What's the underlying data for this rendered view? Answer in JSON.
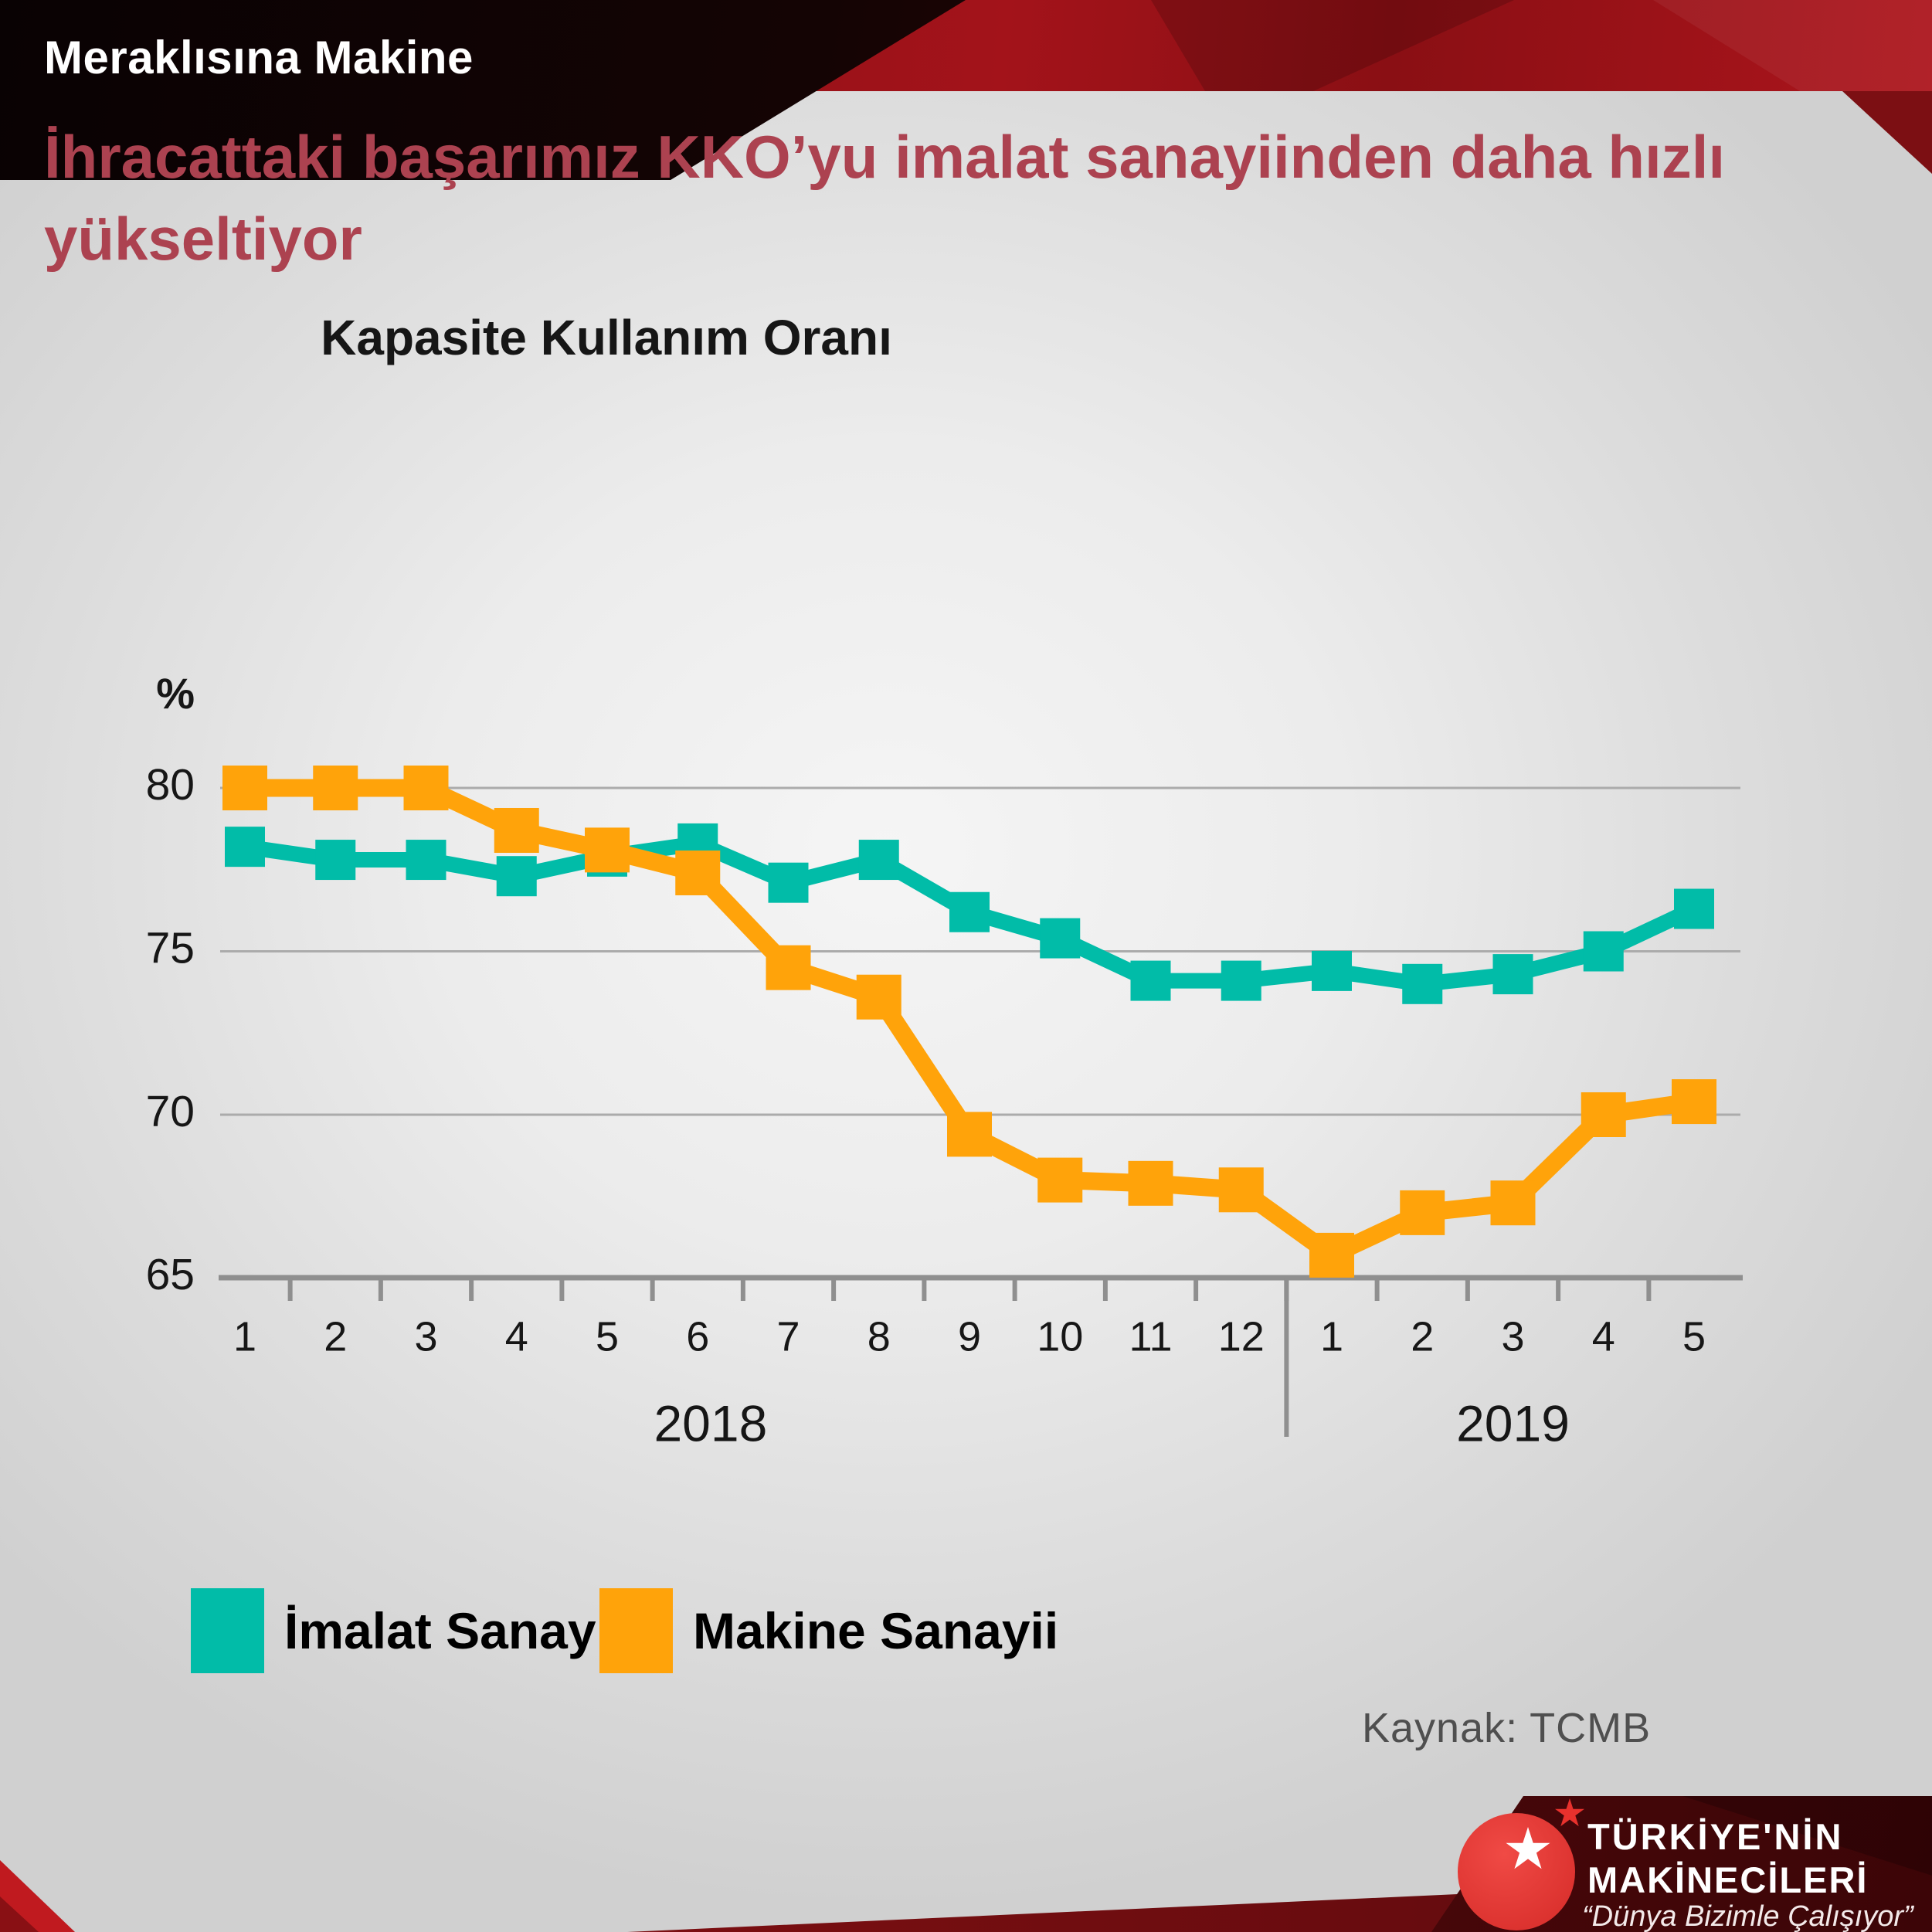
{
  "header": {
    "brand": "Meraklısına Makine"
  },
  "headline": "İhracattaki başarımız KKO’yu imalat sanayiinden daha hızlı yükseltiyor",
  "chart_data": {
    "type": "line",
    "title": "Kapasite Kullanım Oranı",
    "unit_label": "%",
    "y_ticks": [
      80,
      75,
      70,
      65
    ],
    "ylim": [
      65,
      81
    ],
    "grid": "horizontal",
    "categories": [
      "1",
      "2",
      "3",
      "4",
      "5",
      "6",
      "7",
      "8",
      "9",
      "10",
      "11",
      "12",
      "1",
      "2",
      "3",
      "4",
      "5"
    ],
    "year_groups": [
      {
        "label": "2018",
        "count": 12
      },
      {
        "label": "2019",
        "count": 5
      }
    ],
    "legend_position": "bottom-left",
    "series": [
      {
        "name": "İmalat Sanayii",
        "color": "#01bca8",
        "values": [
          78.2,
          77.8,
          77.8,
          77.3,
          77.9,
          78.3,
          77.1,
          77.8,
          76.2,
          75.4,
          74.1,
          74.1,
          74.4,
          74.0,
          74.3,
          75.0,
          76.3
        ]
      },
      {
        "name": "Makine Sanayii",
        "color": "#ffa30a",
        "values": [
          80.0,
          80.0,
          80.0,
          78.7,
          78.1,
          77.4,
          74.5,
          73.6,
          69.4,
          68.0,
          67.9,
          67.7,
          65.7,
          67.0,
          67.3,
          70.0,
          70.4
        ]
      }
    ]
  },
  "source": "Kaynak: TCMB",
  "logo": {
    "line1": "TÜRKİYE'NİN",
    "line2": "MAKİNECİLERİ",
    "tagline": "“Dünya Bizimle Çalışıyor”"
  }
}
